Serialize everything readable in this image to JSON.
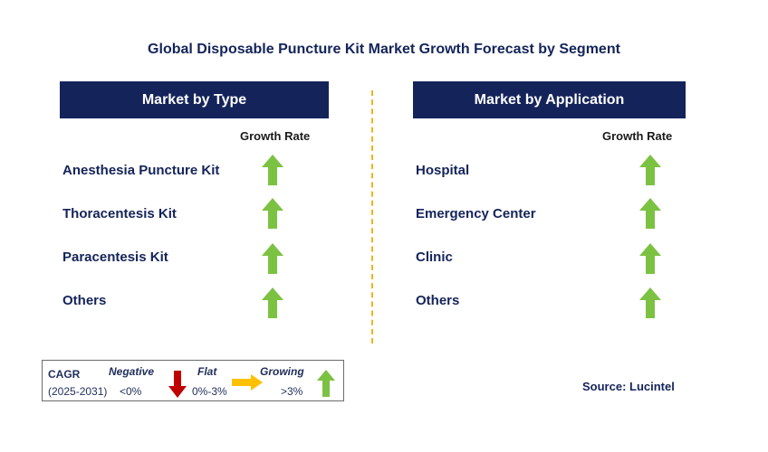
{
  "title": "Global Disposable Puncture Kit Market Growth Forecast by Segment",
  "left_panel": {
    "header": "Market by Type",
    "column_header": "Growth Rate",
    "items": [
      {
        "label": "Anesthesia Puncture Kit",
        "trend": "growing"
      },
      {
        "label": "Thoracentesis Kit",
        "trend": "growing"
      },
      {
        "label": "Paracentesis Kit",
        "trend": "growing"
      },
      {
        "label": "Others",
        "trend": "growing"
      }
    ]
  },
  "right_panel": {
    "header": "Market by Application",
    "column_header": "Growth Rate",
    "items": [
      {
        "label": "Hospital",
        "trend": "growing"
      },
      {
        "label": "Emergency Center",
        "trend": "growing"
      },
      {
        "label": "Clinic",
        "trend": "growing"
      },
      {
        "label": "Others",
        "trend": "growing"
      }
    ]
  },
  "legend": {
    "cagr_label": "CAGR",
    "period": "(2025-2031)",
    "negative_label": "Negative",
    "negative_range": "<0%",
    "flat_label": "Flat",
    "flat_range": "0%-3%",
    "growing_label": "Growing",
    "growing_range": ">3%"
  },
  "source": "Source: Lucintel",
  "colors": {
    "header_bg": "#14245a",
    "growing_arrow": "#7cc242",
    "negative_arrow": "#c00000",
    "flat_arrow": "#ffc000",
    "divider": "#f2b21c"
  }
}
